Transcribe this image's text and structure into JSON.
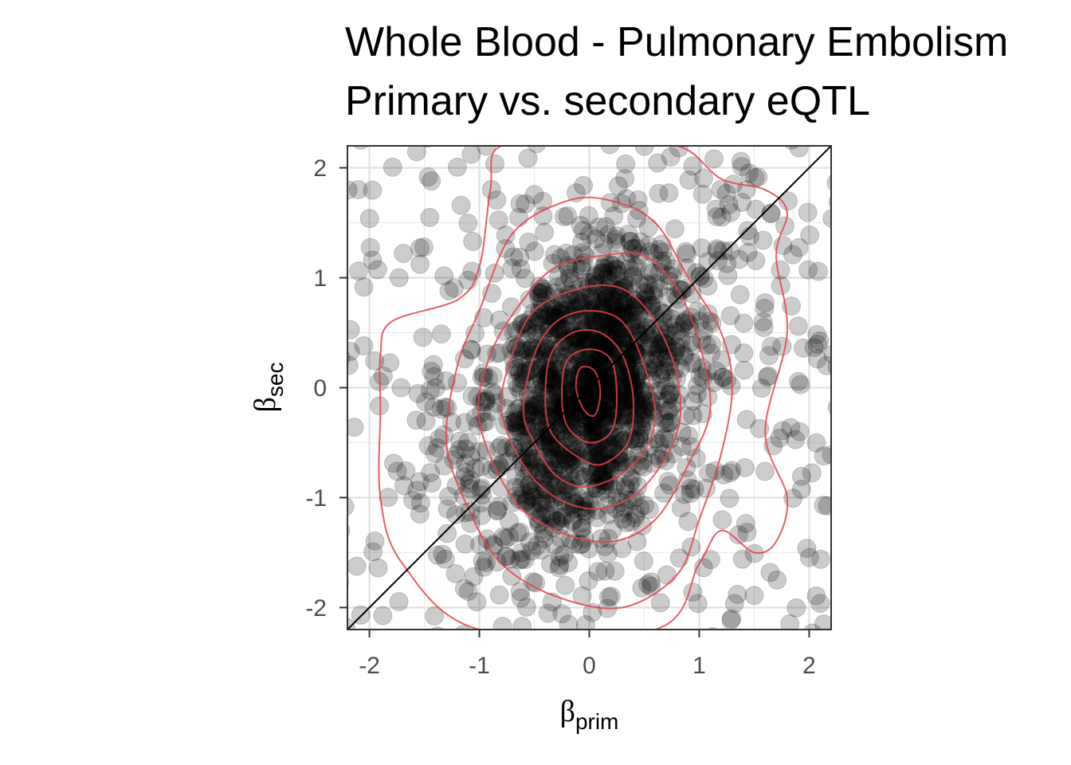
{
  "chart_data": {
    "type": "scatter",
    "title_lines": [
      "Whole Blood - Pulmonary Embolism",
      "Primary vs. secondary eQTL"
    ],
    "x_axis": {
      "symbol": "β",
      "subscript": "prim",
      "range": [
        -2.2,
        2.2
      ],
      "ticks": [
        -2,
        -1,
        0,
        1,
        2
      ]
    },
    "y_axis": {
      "symbol": "β",
      "subscript": "sec",
      "range": [
        -2.2,
        2.2
      ],
      "ticks": [
        -2,
        -1,
        0,
        1,
        2
      ]
    },
    "tick_labels": [
      "-2",
      "-1",
      "0",
      "1",
      "2"
    ],
    "grid": true,
    "reference_line": {
      "slope": 1,
      "intercept": 0,
      "color": "#000000"
    },
    "point_color": "#000000",
    "point_alpha": 0.2,
    "contour_color": "#e8414b",
    "sample_size": 1800,
    "contours": [
      {
        "level": 1,
        "points": [
          [
            -1.9,
            0.3
          ],
          [
            -1.8,
            0.6
          ],
          [
            -1.2,
            0.8
          ],
          [
            -1.0,
            1.1
          ],
          [
            -0.9,
            1.8
          ],
          [
            -0.8,
            2.2
          ],
          [
            0,
            2.2
          ],
          [
            0.8,
            2.2
          ],
          [
            1.2,
            1.9
          ],
          [
            1.6,
            1.8
          ],
          [
            1.8,
            1.6
          ],
          [
            1.7,
            1.2
          ],
          [
            1.8,
            0.5
          ],
          [
            1.6,
            -0.4
          ],
          [
            1.8,
            -1.0
          ],
          [
            1.7,
            -1.4
          ],
          [
            1.5,
            -1.5
          ],
          [
            1.2,
            -1.3
          ],
          [
            1.0,
            -1.6
          ],
          [
            0.6,
            -2.2
          ],
          [
            -1.0,
            -2.2
          ],
          [
            -1.7,
            -1.6
          ],
          [
            -1.9,
            -1.0
          ],
          [
            -1.9,
            -0.2
          ]
        ]
      },
      {
        "level": 2,
        "points": [
          [
            -1.3,
            -0.5
          ],
          [
            -1.2,
            0.2
          ],
          [
            -1.0,
            0.7
          ],
          [
            -0.7,
            1.4
          ],
          [
            -0.2,
            1.7
          ],
          [
            0.2,
            1.7
          ],
          [
            0.6,
            1.5
          ],
          [
            0.9,
            1.0
          ],
          [
            1.2,
            0.5
          ],
          [
            1.3,
            0.0
          ],
          [
            1.2,
            -0.6
          ],
          [
            1.0,
            -1.2
          ],
          [
            0.8,
            -1.7
          ],
          [
            0.3,
            -2.0
          ],
          [
            -0.3,
            -1.9
          ],
          [
            -0.8,
            -1.6
          ],
          [
            -1.1,
            -1.1
          ]
        ]
      },
      {
        "level": 3,
        "points": [
          [
            -1.0,
            -0.3
          ],
          [
            -0.9,
            0.3
          ],
          [
            -0.6,
            0.8
          ],
          [
            -0.3,
            1.1
          ],
          [
            0.1,
            1.2
          ],
          [
            0.5,
            1.2
          ],
          [
            0.8,
            0.9
          ],
          [
            1.0,
            0.4
          ],
          [
            1.1,
            -0.2
          ],
          [
            0.9,
            -0.7
          ],
          [
            0.6,
            -1.2
          ],
          [
            0.2,
            -1.4
          ],
          [
            -0.3,
            -1.3
          ],
          [
            -0.7,
            -1.0
          ]
        ]
      },
      {
        "level": 4,
        "points": [
          [
            -0.8,
            -0.2
          ],
          [
            -0.7,
            0.3
          ],
          [
            -0.5,
            0.7
          ],
          [
            -0.1,
            0.9
          ],
          [
            0.3,
            0.9
          ],
          [
            0.6,
            0.6
          ],
          [
            0.8,
            0.1
          ],
          [
            0.8,
            -0.4
          ],
          [
            0.5,
            -0.9
          ],
          [
            0.1,
            -1.1
          ],
          [
            -0.3,
            -1.0
          ],
          [
            -0.6,
            -0.7
          ]
        ]
      },
      {
        "level": 5,
        "points": [
          [
            -0.6,
            -0.2
          ],
          [
            -0.5,
            0.3
          ],
          [
            -0.3,
            0.6
          ],
          [
            0.0,
            0.7
          ],
          [
            0.3,
            0.6
          ],
          [
            0.5,
            0.2
          ],
          [
            0.6,
            -0.3
          ],
          [
            0.4,
            -0.7
          ],
          [
            0.0,
            -0.9
          ],
          [
            -0.3,
            -0.8
          ],
          [
            -0.5,
            -0.5
          ]
        ]
      },
      {
        "level": 6,
        "points": [
          [
            -0.4,
            -0.1
          ],
          [
            -0.35,
            0.3
          ],
          [
            -0.15,
            0.5
          ],
          [
            0.1,
            0.5
          ],
          [
            0.3,
            0.3
          ],
          [
            0.4,
            -0.1
          ],
          [
            0.35,
            -0.5
          ],
          [
            0.1,
            -0.7
          ],
          [
            -0.15,
            -0.6
          ],
          [
            -0.35,
            -0.4
          ]
        ]
      },
      {
        "level": 7,
        "points": [
          [
            -0.25,
            -0.05
          ],
          [
            -0.2,
            0.25
          ],
          [
            0.0,
            0.35
          ],
          [
            0.2,
            0.25
          ],
          [
            0.25,
            -0.1
          ],
          [
            0.2,
            -0.4
          ],
          [
            0.0,
            -0.5
          ],
          [
            -0.2,
            -0.35
          ]
        ]
      },
      {
        "level": 8,
        "points": [
          [
            -0.12,
            0.0
          ],
          [
            -0.08,
            0.18
          ],
          [
            0.05,
            0.15
          ],
          [
            0.1,
            -0.05
          ],
          [
            0.05,
            -0.25
          ],
          [
            -0.05,
            -0.2
          ]
        ]
      }
    ]
  }
}
